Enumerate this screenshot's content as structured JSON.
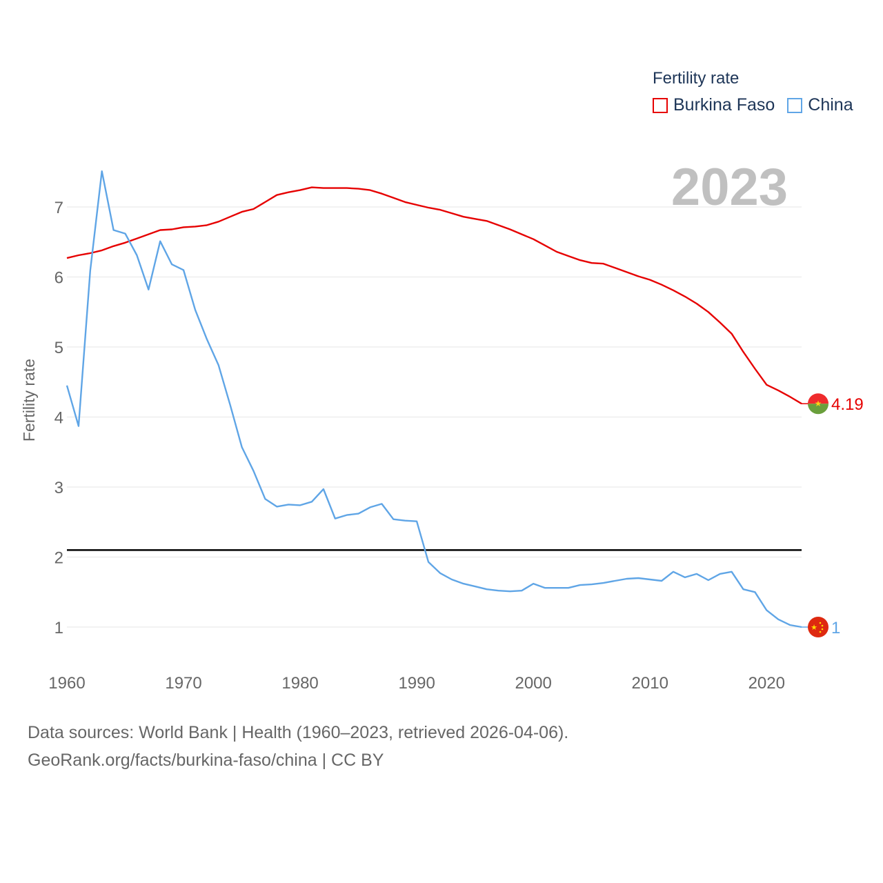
{
  "legend": {
    "title": "Fertility rate",
    "items": [
      {
        "label": "Burkina Faso",
        "color": "#e60000"
      },
      {
        "label": "China",
        "color": "#5fa5e6"
      }
    ]
  },
  "year_label": "2023",
  "footer": {
    "line1": "Data sources: World Bank | Health (1960–2023, retrieved 2026-04-06).",
    "line2": "GeoRank.org/facts/burkina-faso/china | CC BY"
  },
  "chart_data": {
    "type": "line",
    "ylabel": "Fertility rate",
    "xlim": [
      1960,
      2023
    ],
    "ylim": [
      0.5,
      7.6
    ],
    "x_ticks": [
      1960,
      1970,
      1980,
      1990,
      2000,
      2010,
      2020
    ],
    "y_ticks": [
      1,
      2,
      3,
      4,
      5,
      6,
      7
    ],
    "reference_line": 2.1,
    "x": [
      1960,
      1961,
      1962,
      1963,
      1964,
      1965,
      1966,
      1967,
      1968,
      1969,
      1970,
      1971,
      1972,
      1973,
      1974,
      1975,
      1976,
      1977,
      1978,
      1979,
      1980,
      1981,
      1982,
      1983,
      1984,
      1985,
      1986,
      1987,
      1988,
      1989,
      1990,
      1991,
      1992,
      1993,
      1994,
      1995,
      1996,
      1997,
      1998,
      1999,
      2000,
      2001,
      2002,
      2003,
      2004,
      2005,
      2006,
      2007,
      2008,
      2009,
      2010,
      2011,
      2012,
      2013,
      2014,
      2015,
      2016,
      2017,
      2018,
      2019,
      2020,
      2021,
      2022,
      2023
    ],
    "series": [
      {
        "name": "Burkina Faso",
        "color": "#e60000",
        "end_label": "4.19",
        "values": [
          6.27,
          6.31,
          6.34,
          6.38,
          6.44,
          6.49,
          6.55,
          6.61,
          6.67,
          6.68,
          6.71,
          6.72,
          6.74,
          6.79,
          6.86,
          6.93,
          6.97,
          7.07,
          7.17,
          7.21,
          7.24,
          7.28,
          7.27,
          7.27,
          7.27,
          7.26,
          7.24,
          7.19,
          7.13,
          7.07,
          7.03,
          6.99,
          6.96,
          6.91,
          6.86,
          6.83,
          6.8,
          6.74,
          6.68,
          6.61,
          6.54,
          6.45,
          6.36,
          6.3,
          6.24,
          6.2,
          6.19,
          6.13,
          6.07,
          6.01,
          5.96,
          5.89,
          5.81,
          5.72,
          5.62,
          5.5,
          5.35,
          5.19,
          4.93,
          4.69,
          4.46,
          4.38,
          4.29,
          4.19
        ]
      },
      {
        "name": "China",
        "color": "#5fa5e6",
        "end_label": "1",
        "values": [
          4.45,
          3.87,
          6.09,
          7.51,
          6.67,
          6.62,
          6.31,
          5.82,
          6.51,
          6.18,
          6.1,
          5.53,
          5.11,
          4.74,
          4.17,
          3.57,
          3.23,
          2.83,
          2.72,
          2.75,
          2.74,
          2.79,
          2.97,
          2.55,
          2.6,
          2.62,
          2.71,
          2.76,
          2.54,
          2.52,
          2.51,
          1.93,
          1.77,
          1.68,
          1.62,
          1.58,
          1.54,
          1.52,
          1.51,
          1.52,
          1.62,
          1.56,
          1.56,
          1.56,
          1.6,
          1.61,
          1.63,
          1.66,
          1.69,
          1.7,
          1.68,
          1.66,
          1.79,
          1.71,
          1.76,
          1.67,
          1.76,
          1.79,
          1.54,
          1.5,
          1.24,
          1.11,
          1.03,
          1.0
        ]
      }
    ]
  }
}
